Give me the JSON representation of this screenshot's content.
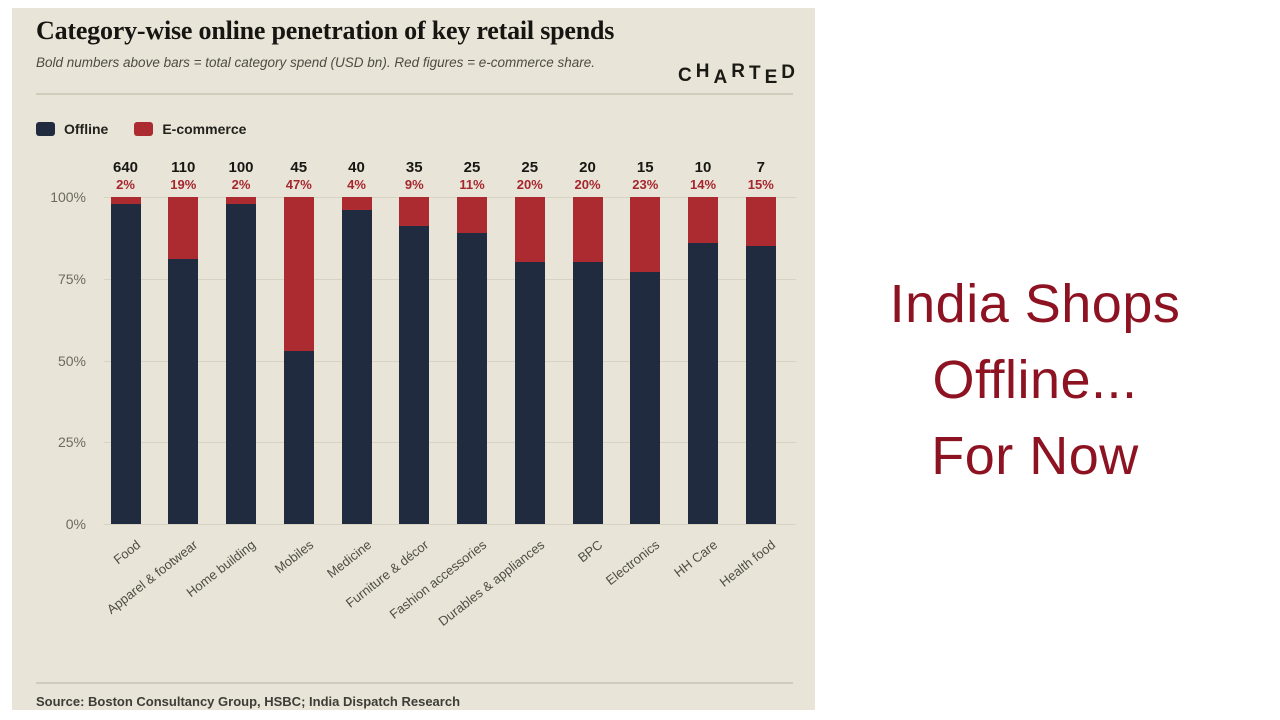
{
  "panel": {
    "title": "Category-wise online penetration of key retail spends",
    "subtitle": "Bold numbers above bars = total category spend (USD bn). Red figures = e-commerce share.",
    "logo": "CHARTED",
    "source": "Source: Boston Consultancy Group, HSBC; India Dispatch Research"
  },
  "legend": [
    {
      "label": "Offline",
      "color": "#212b40"
    },
    {
      "label": "E-commerce",
      "color": "#ab2b30"
    }
  ],
  "chart_data": {
    "type": "bar",
    "stacked": true,
    "title": "Category-wise online penetration of key retail spends",
    "categories": [
      "Food",
      "Apparel & footwear",
      "Home building",
      "Mobiles",
      "Medicine",
      "Furniture & décor",
      "Fashion accessories",
      "Durables & appliances",
      "BPC",
      "Electronics",
      "HH Care",
      "Health food"
    ],
    "series": [
      {
        "name": "Offline",
        "values": [
          98,
          81,
          98,
          53,
          96,
          91,
          89,
          80,
          80,
          77,
          86,
          85
        ]
      },
      {
        "name": "E-commerce",
        "values": [
          2,
          19,
          2,
          47,
          4,
          9,
          11,
          20,
          20,
          23,
          14,
          15
        ]
      }
    ],
    "total_spend_usd_bn": [
      640,
      110,
      100,
      45,
      40,
      35,
      25,
      25,
      20,
      15,
      10,
      7
    ],
    "ecom_share_labels": [
      "2%",
      "19%",
      "2%",
      "47%",
      "4%",
      "9%",
      "11%",
      "20%",
      "20%",
      "23%",
      "14%",
      "15%"
    ],
    "y_ticks": [
      "100%",
      "75%",
      "50%",
      "25%",
      "0%"
    ],
    "ylim": [
      0,
      100
    ],
    "grid": true,
    "legend_position": "top-left",
    "colors": {
      "offline": "#212b40",
      "ecommerce": "#ab2b30",
      "pct_text": "#a6262e",
      "background": "#e8e5d8"
    }
  },
  "caption": {
    "lines": [
      "India Shops",
      "Offline...",
      "For Now"
    ],
    "color": "#8e1322"
  }
}
